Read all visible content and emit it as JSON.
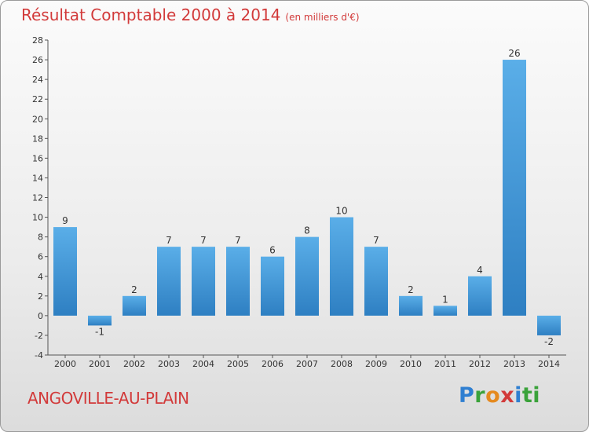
{
  "chart_data": {
    "type": "bar",
    "title": "Résultat Comptable 2000 à 2014",
    "subtitle": "(en milliers d'€)",
    "categories": [
      "2000",
      "2001",
      "2002",
      "2003",
      "2004",
      "2005",
      "2006",
      "2007",
      "2008",
      "2009",
      "2010",
      "2011",
      "2012",
      "2013",
      "2014"
    ],
    "values": [
      9,
      -1,
      2,
      7,
      7,
      7,
      6,
      8,
      10,
      7,
      2,
      1,
      4,
      26,
      -2
    ],
    "ylim": [
      -4,
      28
    ],
    "yticks": [
      -4,
      -2,
      0,
      2,
      4,
      6,
      8,
      10,
      12,
      14,
      16,
      18,
      20,
      22,
      24,
      26,
      28
    ],
    "xlabel": "",
    "ylabel": "",
    "grid": false
  },
  "footer": {
    "commune": "ANGOVILLE-AU-PLAIN",
    "logo_letters": [
      "P",
      "r",
      "o",
      "x",
      "i",
      "ti"
    ]
  },
  "colors": {
    "bar_light": "#5aaee8",
    "bar_dark": "#2e7fc2",
    "title": "#d23a3a"
  }
}
